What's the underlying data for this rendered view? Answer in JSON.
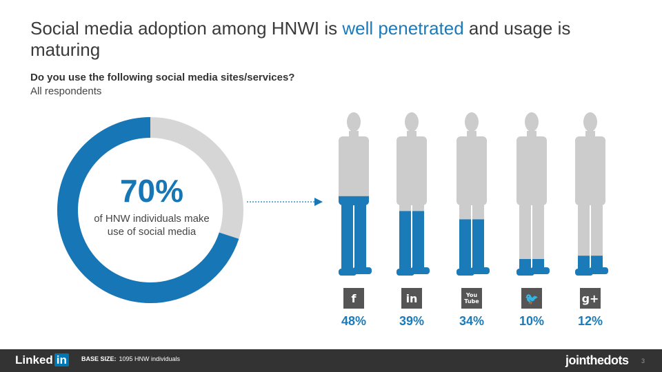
{
  "title": {
    "part1": "Social media adoption among HNWI is ",
    "highlight": "well penetrated",
    "part2": " and usage is maturing"
  },
  "question": "Do you use the following social media sites/services?",
  "subtitle": "All respondents",
  "donut": {
    "percent_label": "70%",
    "value": 70,
    "caption_line1": "of HNW individuals make",
    "caption_line2": "use of social media",
    "color_filled": "#1776b6",
    "color_remaining": "#d6d6d6"
  },
  "chart_data": {
    "type": "bar",
    "categories": [
      "Facebook",
      "LinkedIn",
      "YouTube",
      "Twitter",
      "Google+"
    ],
    "values": [
      48,
      39,
      34,
      10,
      12
    ],
    "labels": [
      "48%",
      "39%",
      "34%",
      "10%",
      "12%"
    ],
    "icons": [
      "facebook-icon",
      "linkedin-icon",
      "youtube-icon",
      "twitter-icon",
      "google-plus-icon"
    ],
    "ylim": [
      0,
      100
    ],
    "color_filled": "#1b7bb8",
    "color_empty": "#cccccc"
  },
  "icon_glyphs": [
    "f",
    "in",
    "You Tube",
    "🐦",
    "g+"
  ],
  "footer": {
    "linkedin_text": "Linked",
    "linkedin_in": "in",
    "base_label": "BASE SIZE:",
    "base_value": "1095 HNW individuals",
    "jtd_logo": "jointhedots",
    "page_number": "3"
  }
}
